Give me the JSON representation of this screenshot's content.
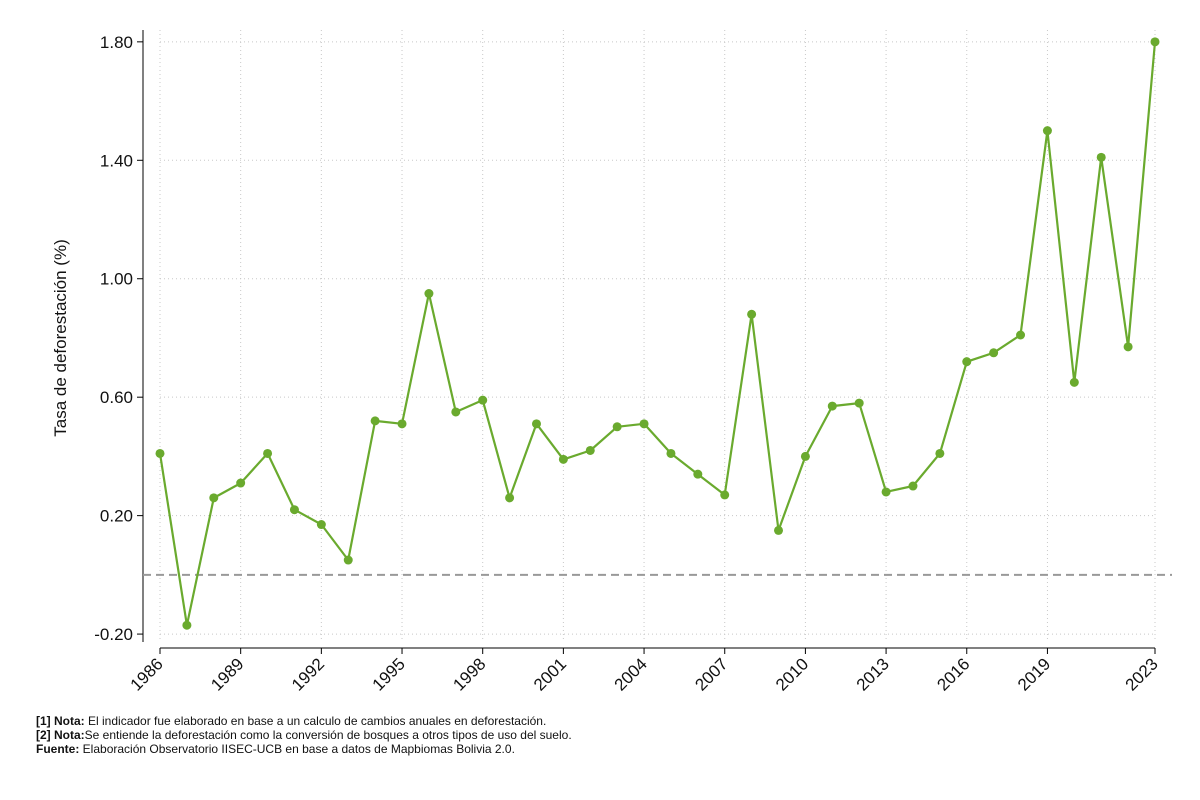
{
  "chart_data": {
    "type": "line",
    "title": "",
    "xlabel": "",
    "ylabel": "Tasa de deforestación (%)",
    "ylim": [
      -0.22,
      1.84
    ],
    "xlim": [
      1986,
      2023
    ],
    "y_ticks": [
      "-0.20",
      "0.20",
      "0.60",
      "1.00",
      "1.40",
      "1.80"
    ],
    "y_tick_values": [
      -0.2,
      0.2,
      0.6,
      1.0,
      1.4,
      1.8
    ],
    "x_ticks": [
      "1986",
      "1989",
      "1992",
      "1995",
      "1998",
      "2001",
      "2004",
      "2007",
      "2010",
      "2013",
      "2016",
      "2019",
      "2023"
    ],
    "x_tick_values": [
      1986,
      1989,
      1992,
      1995,
      1998,
      2001,
      2004,
      2007,
      2010,
      2013,
      2016,
      2019,
      2023
    ],
    "reference_line": 0,
    "grid": true,
    "color": "#6aaa2e",
    "series": [
      {
        "x": [
          1986,
          1987,
          1988,
          1989,
          1990,
          1991,
          1992,
          1993,
          1994,
          1995,
          1996,
          1997,
          1998,
          1999,
          2000,
          2001,
          2002,
          2003,
          2004,
          2005,
          2006,
          2007,
          2008,
          2009,
          2010,
          2011,
          2012,
          2013,
          2014,
          2015,
          2016,
          2017,
          2018,
          2019,
          2020,
          2021,
          2022,
          2023
        ],
        "values": [
          0.41,
          -0.17,
          0.26,
          0.31,
          0.41,
          0.22,
          0.17,
          0.05,
          0.52,
          0.51,
          0.95,
          0.55,
          0.59,
          0.26,
          0.51,
          0.39,
          0.42,
          0.5,
          0.51,
          0.41,
          0.34,
          0.27,
          0.88,
          0.15,
          0.4,
          0.57,
          0.58,
          0.28,
          0.3,
          0.41,
          0.72,
          0.75,
          0.81,
          1.5,
          0.65,
          1.41,
          0.77,
          1.8
        ]
      }
    ]
  },
  "notes": [
    {
      "label": "[1] Nota:",
      "text": " El indicador fue elaborado en base a un calculo de cambios anuales en deforestación."
    },
    {
      "label": "[2] Nota:",
      "text": "Se entiende la deforestación como la conversión de bosques a otros tipos de uso del suelo."
    },
    {
      "label": "Fuente:",
      "text": " Elaboración Observatorio IISEC-UCB en base a datos de Mapbiomas Bolivia 2.0."
    }
  ]
}
